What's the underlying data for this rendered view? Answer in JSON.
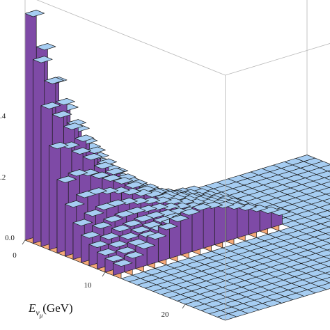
{
  "chart_data": {
    "type": "3d-bar",
    "xlabel_main": "E",
    "xlabel_sub": "ν",
    "xlabel_subsub": "μ",
    "xlabel_unit": "(GeV)",
    "x_ticks": [
      "0",
      "10",
      "20"
    ],
    "z_ticks": [
      "0.0",
      ".2",
      ".4"
    ],
    "x_range": [
      0,
      25
    ],
    "y_bins": 25,
    "z_range": [
      0,
      0.8
    ],
    "grid": false,
    "colors": {
      "top": "#a6cdf2",
      "side_near": "#f6a978",
      "side_far": "#7e4aa6",
      "edge": "#1c1c1c",
      "box": "#b8b8b8"
    },
    "series": [
      {
        "values": [
          0.74,
          0.62,
          0.5,
          0.4,
          0.32,
          0.25,
          0.19,
          0.14,
          0.1,
          0.07,
          0.05,
          0.03,
          0.02,
          0.015,
          0.01
        ]
      },
      {
        "values": [
          0.6,
          0.52,
          0.44,
          0.36,
          0.29,
          0.23,
          0.18,
          0.14,
          0.11,
          0.08,
          0.06,
          0.045,
          0.03,
          0.02,
          0.012
        ]
      },
      {
        "values": [
          0.46,
          0.42,
          0.37,
          0.32,
          0.27,
          0.22,
          0.18,
          0.14,
          0.11,
          0.085,
          0.065,
          0.05,
          0.035,
          0.022,
          0.014
        ]
      },
      {
        "values": [
          0.34,
          0.33,
          0.3,
          0.27,
          0.23,
          0.2,
          0.17,
          0.14,
          0.115,
          0.09,
          0.07,
          0.055,
          0.04,
          0.028,
          0.017
        ]
      },
      {
        "values": [
          0.24,
          0.25,
          0.24,
          0.22,
          0.2,
          0.18,
          0.155,
          0.13,
          0.11,
          0.09,
          0.075,
          0.06,
          0.045,
          0.032,
          0.02
        ]
      },
      {
        "values": [
          0.17,
          0.19,
          0.19,
          0.18,
          0.17,
          0.155,
          0.14,
          0.125,
          0.105,
          0.09,
          0.075,
          0.062,
          0.048,
          0.035,
          0.023
        ]
      },
      {
        "values": [
          0.12,
          0.14,
          0.15,
          0.15,
          0.145,
          0.135,
          0.125,
          0.115,
          0.1,
          0.088,
          0.075,
          0.063,
          0.05,
          0.038,
          0.026
        ]
      },
      {
        "values": [
          0.09,
          0.11,
          0.12,
          0.125,
          0.125,
          0.12,
          0.115,
          0.105,
          0.095,
          0.085,
          0.074,
          0.063,
          0.052,
          0.04,
          0.028
        ]
      },
      {
        "values": [
          0.07,
          0.085,
          0.1,
          0.105,
          0.11,
          0.11,
          0.105,
          0.1,
          0.092,
          0.083,
          0.074,
          0.064,
          0.054,
          0.043,
          0.031
        ]
      },
      {
        "values": [
          0.055,
          0.07,
          0.085,
          0.095,
          0.1,
          0.105,
          0.105,
          0.1,
          0.095,
          0.086,
          0.077,
          0.067,
          0.057,
          0.046,
          0.034
        ]
      },
      {
        "values": [
          0.045,
          0.06,
          0.075,
          0.09,
          0.1,
          0.11,
          0.115,
          0.115,
          0.11,
          0.1,
          0.09,
          0.078,
          0.066,
          0.053,
          0.04
        ]
      },
      {
        "values": [
          0.04,
          0.055,
          0.075,
          0.095,
          0.115,
          0.13,
          0.14,
          0.145,
          0.14,
          0.13,
          0.115,
          0.1,
          0.085,
          0.068,
          0.05
        ]
      }
    ]
  }
}
